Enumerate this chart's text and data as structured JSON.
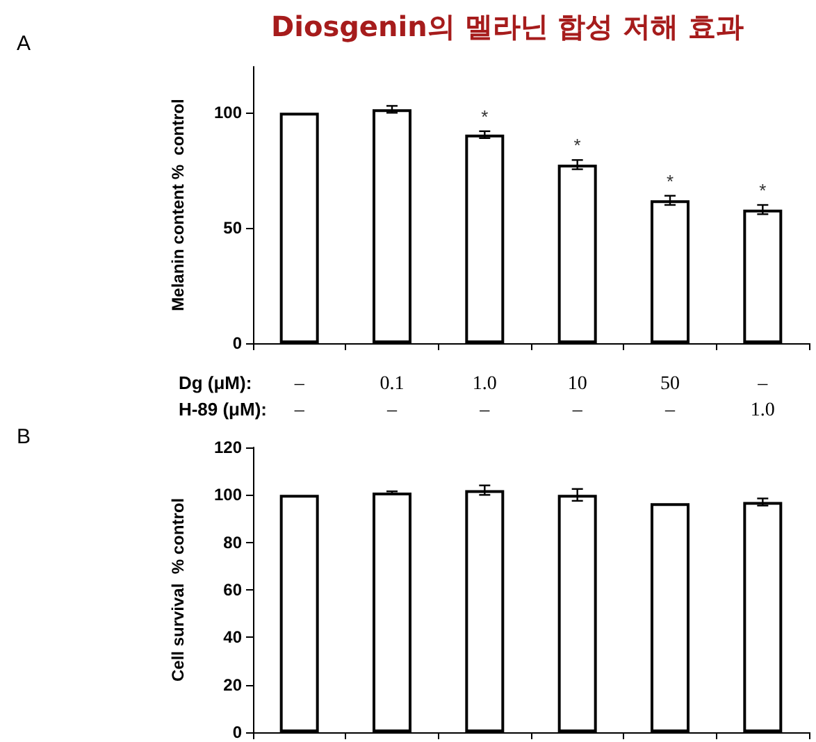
{
  "chart_data": [
    {
      "type": "bar",
      "title": "Diosgenin의 멜라닌 합성 저해 효과",
      "ylabel": "Melanin content %  control",
      "xlabel": "Dg (μM):\nH-89 (μM):",
      "categories": [
        "–\n–",
        "0.1\n–",
        "1.0\n–",
        "10\n–",
        "50\n–",
        "–\n1.0"
      ],
      "values": [
        100,
        101.5,
        90.5,
        77.5,
        62,
        58
      ],
      "errors": [
        null,
        1.5,
        1.5,
        2,
        2,
        2
      ],
      "color": "#ffffff",
      "ylim": [
        0,
        120
      ],
      "yticks": [
        0,
        50,
        100
      ],
      "grid": false,
      "annotations": [
        "A",
        {
          "text": "*",
          "x": "1.0\n–",
          "y": 90.5
        },
        {
          "text": "*",
          "x": "10\n–",
          "y": 77.5
        },
        {
          "text": "*",
          "x": "50\n–",
          "y": 62
        },
        {
          "text": "*",
          "x": "–\n1.0",
          "y": 58
        }
      ]
    },
    {
      "type": "bar",
      "ylabel": "Cell survival  % control",
      "categories": [
        null,
        null,
        null,
        null,
        null,
        null
      ],
      "values": [
        100,
        101,
        102,
        100,
        96.5,
        97
      ],
      "errors": [
        null,
        0.5,
        2,
        2.5,
        null,
        1.5
      ],
      "color": "#ffffff",
      "ylim": [
        0,
        120
      ],
      "yticks": [
        0,
        20,
        40,
        60,
        80,
        100,
        120
      ],
      "grid": false,
      "tick_labels": "y",
      "annotations": [
        "B"
      ]
    }
  ]
}
